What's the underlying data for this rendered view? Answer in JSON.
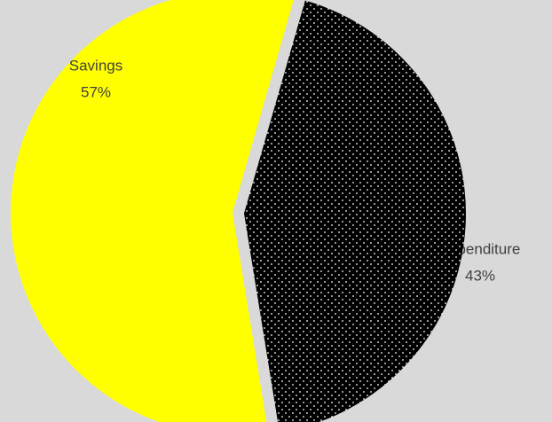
{
  "chart_data": {
    "type": "pie",
    "categories": [
      "Savings",
      "Expenditure"
    ],
    "values": [
      57,
      43
    ],
    "value_labels": [
      "57%",
      "43%"
    ],
    "colors": [
      "#ffff00",
      "#000000"
    ]
  }
}
